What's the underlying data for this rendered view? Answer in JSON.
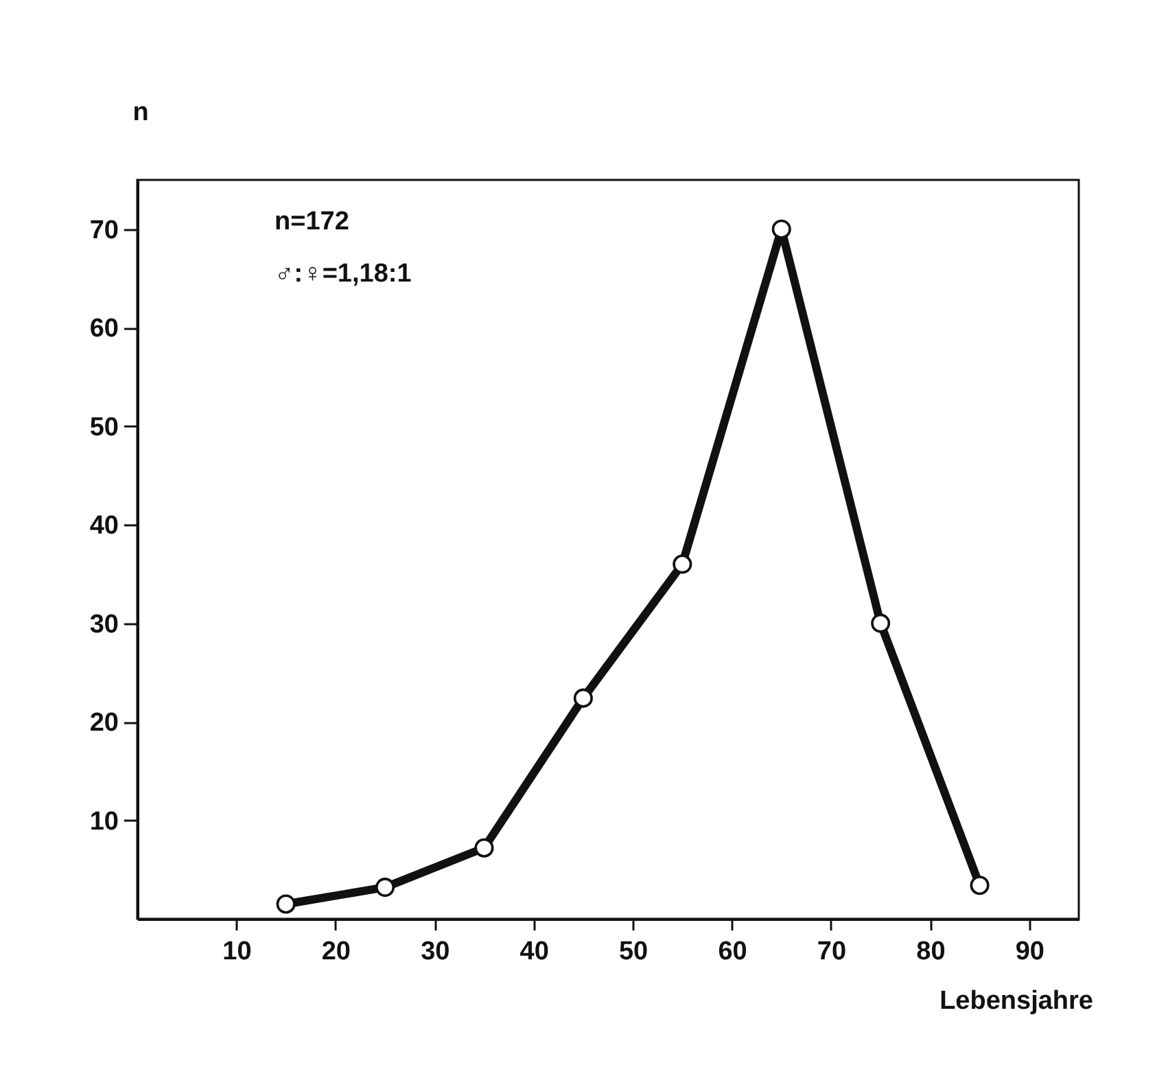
{
  "chart_data": {
    "type": "line",
    "xlabel": "Lebensjahre",
    "ylabel": "n",
    "annotations": [
      "n=172",
      "♂:♀=1,18:1"
    ],
    "x": [
      15,
      25,
      35,
      45,
      55,
      65,
      75,
      85
    ],
    "series": [
      {
        "color": "#111111",
        "values": [
          1.5,
          3.2,
          7.2,
          22.4,
          36,
          70,
          30,
          3.4
        ]
      }
    ],
    "xlim": [
      0,
      95
    ],
    "xticks": [
      10,
      20,
      30,
      40,
      50,
      60,
      70,
      80,
      90
    ],
    "ylim": [
      0,
      75
    ],
    "yticks": [
      10,
      20,
      30,
      40,
      50,
      60,
      70
    ],
    "grid": false,
    "marker": "circle",
    "line_style": "solid"
  }
}
